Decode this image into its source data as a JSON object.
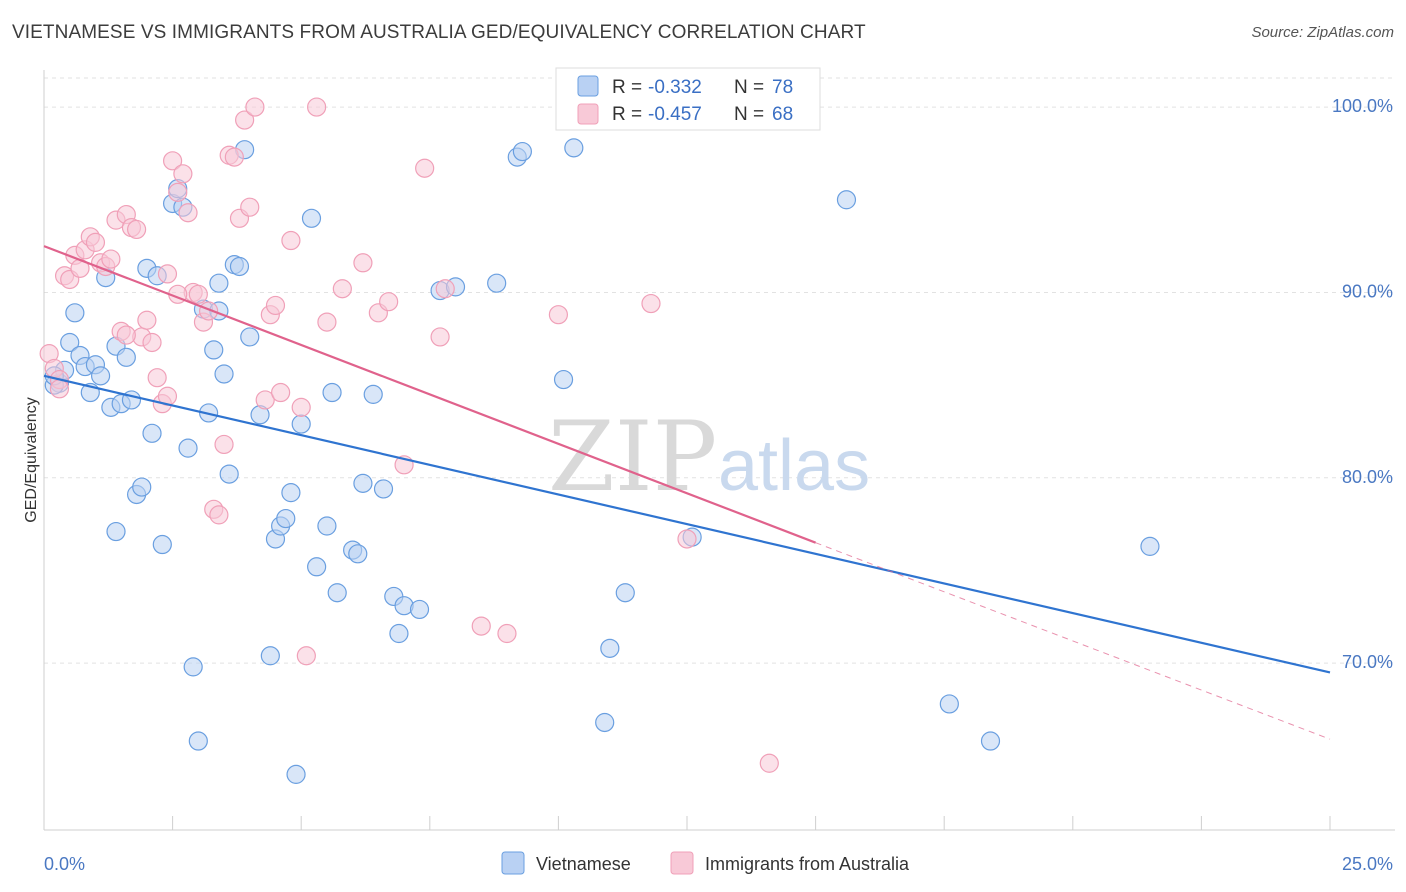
{
  "header": {
    "title": "VIETNAMESE VS IMMIGRANTS FROM AUSTRALIA GED/EQUIVALENCY CORRELATION CHART",
    "source": "Source: ZipAtlas.com"
  },
  "watermark": {
    "zip": "ZIP",
    "atlas": "atlas"
  },
  "chart_data": {
    "type": "scatter",
    "title": "VIETNAMESE VS IMMIGRANTS FROM AUSTRALIA GED/EQUIVALENCY CORRELATION CHART",
    "ylabel": "GED/Equivalency",
    "xlabel": "",
    "xlim": [
      0,
      25
    ],
    "ylim": [
      61.0,
      102.0
    ],
    "x_tick_labels": [
      "0.0%",
      "25.0%"
    ],
    "y_ticks": [
      70,
      80,
      90,
      100
    ],
    "y_tick_labels": [
      "70.0%",
      "80.0%",
      "90.0%",
      "100.0%"
    ],
    "grid": true,
    "legend_placement": "top-center",
    "legend": [
      {
        "r_label": "R = ",
        "r_value": "-0.332",
        "n_label": "N = ",
        "n_value": "78"
      },
      {
        "r_label": "R = ",
        "r_value": "-0.457",
        "n_label": "N = ",
        "n_value": "68"
      }
    ],
    "series": [
      {
        "name": "Vietnamese",
        "color": "#6a9fe0",
        "fill": "#b9d1f3",
        "line_color": "#2f74d0",
        "trend": {
          "x0": 0,
          "y0": 85.5,
          "x1": 25,
          "y1": 69.5
        },
        "points": [
          [
            0.3,
            85.1
          ],
          [
            0.4,
            85.8
          ],
          [
            0.5,
            87.3
          ],
          [
            0.6,
            88.9
          ],
          [
            0.7,
            86.6
          ],
          [
            0.8,
            86.0
          ],
          [
            0.9,
            84.6
          ],
          [
            1.0,
            86.1
          ],
          [
            1.1,
            85.5
          ],
          [
            1.2,
            90.8
          ],
          [
            1.3,
            83.8
          ],
          [
            1.4,
            87.1
          ],
          [
            1.5,
            84.0
          ],
          [
            1.6,
            86.5
          ],
          [
            1.7,
            84.2
          ],
          [
            1.8,
            79.1
          ],
          [
            2.0,
            91.3
          ],
          [
            2.1,
            82.4
          ],
          [
            2.2,
            90.9
          ],
          [
            2.3,
            76.4
          ],
          [
            2.5,
            94.8
          ],
          [
            2.6,
            95.6
          ],
          [
            2.7,
            94.6
          ],
          [
            2.8,
            81.6
          ],
          [
            2.9,
            69.8
          ],
          [
            3.0,
            65.8
          ],
          [
            3.1,
            89.1
          ],
          [
            3.2,
            83.5
          ],
          [
            3.3,
            86.9
          ],
          [
            3.4,
            90.5
          ],
          [
            3.5,
            85.6
          ],
          [
            3.6,
            80.2
          ],
          [
            3.7,
            91.5
          ],
          [
            3.8,
            91.4
          ],
          [
            3.9,
            97.7
          ],
          [
            4.0,
            87.6
          ],
          [
            4.2,
            83.4
          ],
          [
            4.4,
            70.4
          ],
          [
            4.5,
            76.7
          ],
          [
            4.6,
            77.4
          ],
          [
            4.7,
            77.8
          ],
          [
            4.8,
            79.2
          ],
          [
            4.9,
            64.0
          ],
          [
            5.0,
            82.9
          ],
          [
            5.2,
            94.0
          ],
          [
            5.3,
            75.2
          ],
          [
            5.5,
            77.4
          ],
          [
            5.6,
            84.6
          ],
          [
            5.7,
            73.8
          ],
          [
            6.0,
            76.1
          ],
          [
            6.1,
            75.9
          ],
          [
            6.2,
            79.7
          ],
          [
            6.4,
            84.5
          ],
          [
            6.6,
            79.4
          ],
          [
            6.8,
            73.6
          ],
          [
            6.9,
            71.6
          ],
          [
            7.0,
            73.1
          ],
          [
            7.3,
            72.9
          ],
          [
            7.7,
            90.1
          ],
          [
            8.0,
            90.3
          ],
          [
            8.8,
            90.5
          ],
          [
            9.2,
            97.3
          ],
          [
            9.3,
            97.6
          ],
          [
            10.1,
            85.3
          ],
          [
            10.3,
            97.8
          ],
          [
            10.9,
            66.8
          ],
          [
            11.0,
            70.8
          ],
          [
            11.3,
            73.8
          ],
          [
            12.6,
            76.8
          ],
          [
            15.6,
            95.0
          ],
          [
            17.6,
            67.8
          ],
          [
            18.4,
            65.8
          ],
          [
            21.5,
            76.3
          ],
          [
            0.2,
            85.0
          ],
          [
            0.2,
            85.5
          ],
          [
            1.9,
            79.5
          ],
          [
            3.4,
            89.0
          ],
          [
            1.4,
            77.1
          ]
        ]
      },
      {
        "name": "Immigrants from Australia",
        "color": "#f0a0b8",
        "fill": "#f8c9d7",
        "line_color": "#e0628c",
        "trend": {
          "x0": 0,
          "y0": 92.5,
          "x1": 15.0,
          "y1": 76.5
        },
        "trend_dashed": {
          "x0": 15.0,
          "y0": 76.5,
          "x1": 25,
          "y1": 65.9
        },
        "points": [
          [
            0.1,
            86.7
          ],
          [
            0.2,
            85.9
          ],
          [
            0.3,
            85.3
          ],
          [
            0.4,
            90.9
          ],
          [
            0.5,
            90.7
          ],
          [
            0.6,
            92.0
          ],
          [
            0.7,
            91.3
          ],
          [
            0.8,
            92.3
          ],
          [
            0.9,
            93.0
          ],
          [
            1.0,
            92.7
          ],
          [
            1.1,
            91.6
          ],
          [
            1.2,
            91.4
          ],
          [
            1.3,
            91.8
          ],
          [
            1.4,
            93.9
          ],
          [
            1.5,
            87.9
          ],
          [
            1.6,
            94.2
          ],
          [
            1.7,
            93.5
          ],
          [
            1.8,
            93.4
          ],
          [
            1.9,
            87.6
          ],
          [
            2.0,
            88.5
          ],
          [
            2.1,
            87.3
          ],
          [
            2.2,
            85.4
          ],
          [
            2.3,
            84.0
          ],
          [
            2.4,
            84.4
          ],
          [
            2.5,
            97.1
          ],
          [
            2.6,
            95.4
          ],
          [
            2.7,
            96.4
          ],
          [
            2.8,
            94.3
          ],
          [
            2.9,
            90.0
          ],
          [
            3.0,
            89.9
          ],
          [
            3.1,
            88.4
          ],
          [
            3.2,
            89.0
          ],
          [
            3.3,
            78.3
          ],
          [
            3.4,
            78.0
          ],
          [
            3.5,
            81.8
          ],
          [
            3.6,
            97.4
          ],
          [
            3.7,
            97.3
          ],
          [
            3.8,
            94.0
          ],
          [
            3.9,
            99.3
          ],
          [
            4.0,
            94.6
          ],
          [
            4.1,
            100.0
          ],
          [
            4.3,
            84.2
          ],
          [
            4.4,
            88.8
          ],
          [
            4.5,
            89.3
          ],
          [
            4.6,
            84.6
          ],
          [
            4.8,
            92.8
          ],
          [
            5.0,
            83.8
          ],
          [
            5.1,
            70.4
          ],
          [
            5.3,
            100.0
          ],
          [
            5.5,
            88.4
          ],
          [
            5.8,
            90.2
          ],
          [
            6.2,
            91.6
          ],
          [
            6.5,
            88.9
          ],
          [
            6.7,
            89.5
          ],
          [
            7.0,
            80.7
          ],
          [
            7.4,
            96.7
          ],
          [
            7.7,
            87.6
          ],
          [
            7.8,
            90.2
          ],
          [
            8.5,
            72.0
          ],
          [
            9.0,
            71.6
          ],
          [
            10.0,
            88.8
          ],
          [
            11.8,
            89.4
          ],
          [
            12.5,
            76.7
          ],
          [
            14.1,
            64.6
          ],
          [
            2.4,
            91.0
          ],
          [
            1.6,
            87.7
          ],
          [
            0.3,
            84.8
          ],
          [
            2.6,
            89.9
          ]
        ]
      }
    ]
  },
  "bottom_legend": [
    {
      "label": "Vietnamese"
    },
    {
      "label": "Immigrants from Australia"
    }
  ]
}
